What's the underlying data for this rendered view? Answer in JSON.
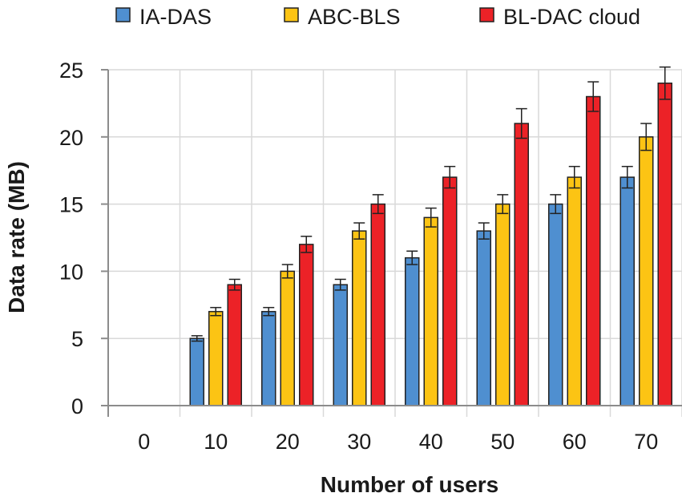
{
  "chart_data": {
    "type": "bar",
    "title": "",
    "xlabel": "Number of users",
    "ylabel": "Data rate (MB)",
    "ylim": [
      0,
      25
    ],
    "yticks": [
      0,
      5,
      10,
      15,
      20,
      25
    ],
    "grid": true,
    "legend_position": "top",
    "categories": [
      "0",
      "10",
      "20",
      "30",
      "40",
      "50",
      "60",
      "70"
    ],
    "series": [
      {
        "name": "IA-DAS",
        "color": "#4f8fd0",
        "values": [
          0,
          5,
          7,
          9,
          11,
          13,
          15,
          17
        ],
        "errors": [
          0,
          0.2,
          0.3,
          0.4,
          0.5,
          0.6,
          0.7,
          0.8
        ]
      },
      {
        "name": "ABC-BLS",
        "color": "#fcc414",
        "values": [
          0,
          7,
          10,
          13,
          14,
          15,
          17,
          20
        ],
        "errors": [
          0,
          0.3,
          0.5,
          0.6,
          0.7,
          0.7,
          0.8,
          1.0
        ]
      },
      {
        "name": "BL-DAC cloud",
        "color": "#ec2227",
        "values": [
          0,
          9,
          12,
          15,
          17,
          21,
          23,
          24
        ],
        "errors": [
          0,
          0.4,
          0.6,
          0.7,
          0.8,
          1.1,
          1.1,
          1.2
        ]
      }
    ]
  }
}
